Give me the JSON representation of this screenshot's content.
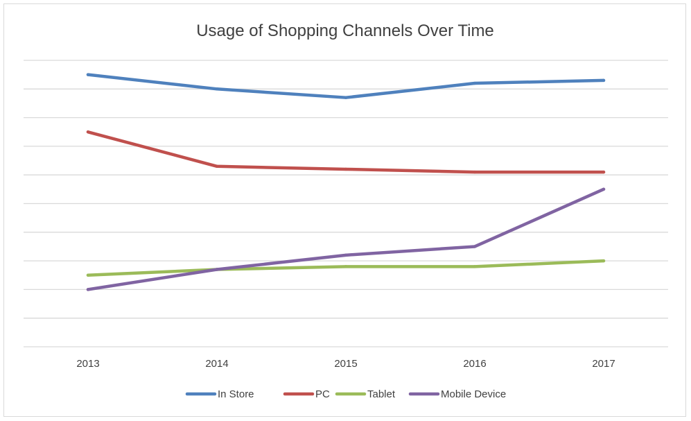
{
  "chart_data": {
    "type": "line",
    "title": "Usage of Shopping Channels Over Time",
    "xlabel": "",
    "ylabel": "",
    "categories": [
      "2013",
      "2014",
      "2015",
      "2016",
      "2017"
    ],
    "ylim": [
      0,
      10
    ],
    "gridlines": 10,
    "grid": true,
    "y_tick_labels": false,
    "legend": "bottom",
    "series": [
      {
        "name": "In Store",
        "color": "#4f81bd",
        "values": [
          9.5,
          9.0,
          8.7,
          9.2,
          9.3
        ]
      },
      {
        "name": "PC",
        "color": "#c0504d",
        "values": [
          7.5,
          6.3,
          6.2,
          6.1,
          6.1
        ]
      },
      {
        "name": "Tablet",
        "color": "#9bbb59",
        "values": [
          2.5,
          2.7,
          2.8,
          2.8,
          3.0
        ]
      },
      {
        "name": "Mobile Device",
        "color": "#8064a2",
        "values": [
          2.0,
          2.7,
          3.2,
          3.5,
          5.5
        ]
      }
    ]
  }
}
